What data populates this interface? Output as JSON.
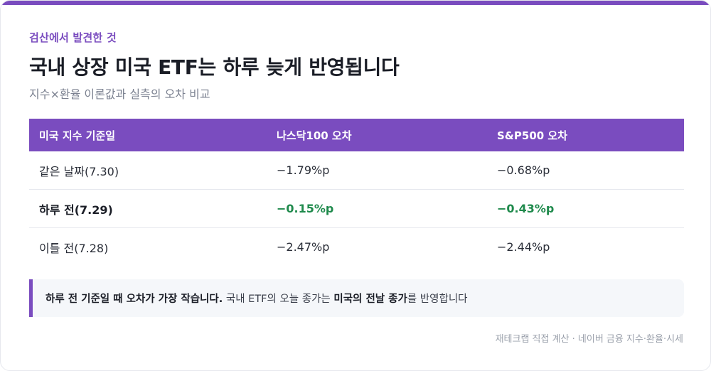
{
  "header": {
    "eyebrow": "검산에서 발견한 것",
    "title": "국내 상장 미국 ETF는 하루 늦게 반영됩니다",
    "subtitle": "지수×환율 이론값과 실측의 오차 비교"
  },
  "table": {
    "columns": [
      "미국 지수 기준일",
      "나스닥100 오차",
      "S&P500 오차"
    ],
    "rows": [
      {
        "label": "같은 날짜(7.30)",
        "nasdaq": "−1.79%p",
        "sp500": "−0.68%p",
        "highlight": false
      },
      {
        "label": "하루 전(7.29)",
        "nasdaq": "−0.15%p",
        "sp500": "−0.43%p",
        "highlight": true
      },
      {
        "label": "이틀 전(7.28)",
        "nasdaq": "−2.47%p",
        "sp500": "−2.44%p",
        "highlight": false
      }
    ]
  },
  "note": {
    "bold1": "하루 전 기준일 때 오차가 가장 작습니다.",
    "text1": " 국내 ETF의 오늘 종가는 ",
    "bold2": "미국의 전날 종가",
    "text2": "를 반영합니다"
  },
  "source": "재테크랩 직접 계산 · 네이버 금융 지수·환율·시세",
  "colors": {
    "accent": "#7a4cbf",
    "good": "#1f8a4c",
    "note_bg": "#f5f7fa"
  }
}
